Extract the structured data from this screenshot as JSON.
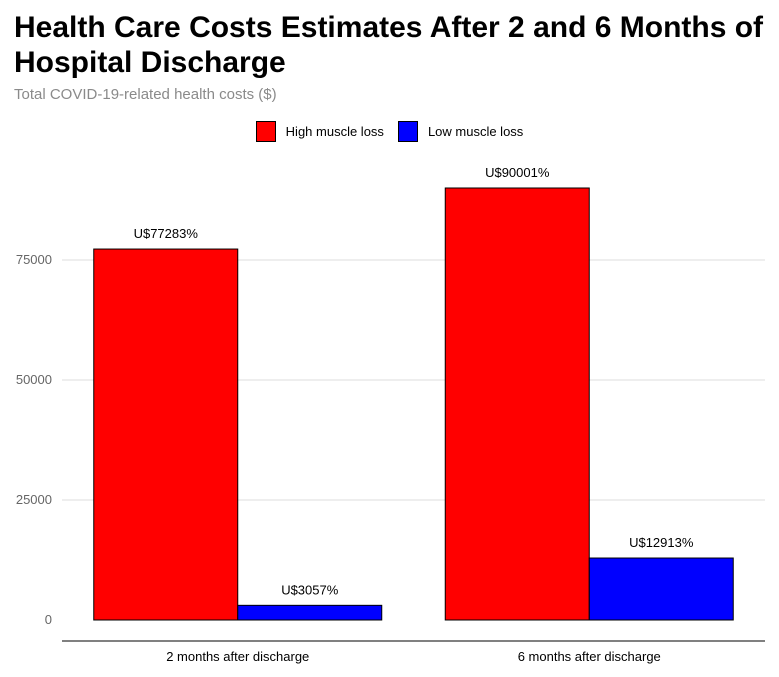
{
  "chart_data": {
    "type": "bar",
    "title": "Health Care Costs Estimates After 2 and 6 Months of Hospital Discharge",
    "subtitle": "Total COVID-19-related health costs ($)",
    "categories": [
      "2 months after discharge",
      "6 months after discharge"
    ],
    "series": [
      {
        "name": "High muscle loss",
        "color": "#ff0000",
        "values": [
          77283,
          90001
        ],
        "labels": [
          "U$77283%",
          "U$90001%"
        ]
      },
      {
        "name": "Low muscle loss",
        "color": "#0000ff",
        "values": [
          3057,
          12913
        ],
        "labels": [
          "U$3057%",
          "U$12913%"
        ]
      }
    ],
    "yticks": [
      0,
      25000,
      50000,
      75000
    ],
    "ylim": [
      0,
      100000
    ],
    "grid": true,
    "legend_position": "top-center",
    "xlabel": "",
    "ylabel": ""
  }
}
